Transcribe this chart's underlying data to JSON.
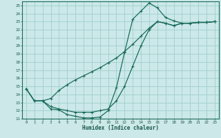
{
  "xlabel": "Humidex (Indice chaleur)",
  "bg_color": "#cce8e8",
  "line_color": "#1a6b5a",
  "grid_color": "#9ecece",
  "xlim": [
    -0.5,
    23.5
  ],
  "ylim": [
    11,
    25.5
  ],
  "xticks": [
    0,
    1,
    2,
    3,
    4,
    5,
    6,
    7,
    8,
    9,
    10,
    11,
    12,
    13,
    14,
    15,
    16,
    17,
    18,
    19,
    20,
    21,
    22,
    23
  ],
  "yticks": [
    11,
    12,
    13,
    14,
    15,
    16,
    17,
    18,
    19,
    20,
    21,
    22,
    23,
    24,
    25
  ],
  "series": [
    {
      "x": [
        0,
        1,
        2,
        3,
        4,
        5,
        6,
        7,
        8,
        9,
        10,
        11,
        12,
        13,
        14,
        15,
        16,
        17,
        18,
        19,
        20,
        21,
        22,
        23
      ],
      "y": [
        14.7,
        13.2,
        13.2,
        12.2,
        12.1,
        11.5,
        11.3,
        11.1,
        11.1,
        11.2,
        12.0,
        14.8,
        19.2,
        23.3,
        24.3,
        25.3,
        24.7,
        23.5,
        23.1,
        22.8,
        22.8,
        22.9,
        22.9,
        23.0
      ]
    },
    {
      "x": [
        0,
        1,
        2,
        3,
        4,
        5,
        6,
        7,
        8,
        9,
        10,
        11,
        12,
        13,
        14,
        15,
        16,
        17,
        18,
        19,
        20,
        21,
        22,
        23
      ],
      "y": [
        14.7,
        13.2,
        13.2,
        13.5,
        14.5,
        15.2,
        15.8,
        16.3,
        16.8,
        17.3,
        17.9,
        18.5,
        19.3,
        20.2,
        21.2,
        22.2,
        23.0,
        22.8,
        22.5,
        22.8,
        22.8,
        22.9,
        22.9,
        23.0
      ]
    },
    {
      "x": [
        0,
        1,
        2,
        3,
        4,
        5,
        6,
        7,
        8,
        9,
        10,
        11,
        12,
        13,
        14,
        15,
        16,
        17,
        18,
        19,
        20,
        21,
        22,
        23
      ],
      "y": [
        14.7,
        13.2,
        13.2,
        12.5,
        12.2,
        12.0,
        11.8,
        11.8,
        11.8,
        12.0,
        12.2,
        13.2,
        15.0,
        17.5,
        20.0,
        22.0,
        23.0,
        22.8,
        22.5,
        22.8,
        22.8,
        22.9,
        22.9,
        23.0
      ]
    }
  ]
}
